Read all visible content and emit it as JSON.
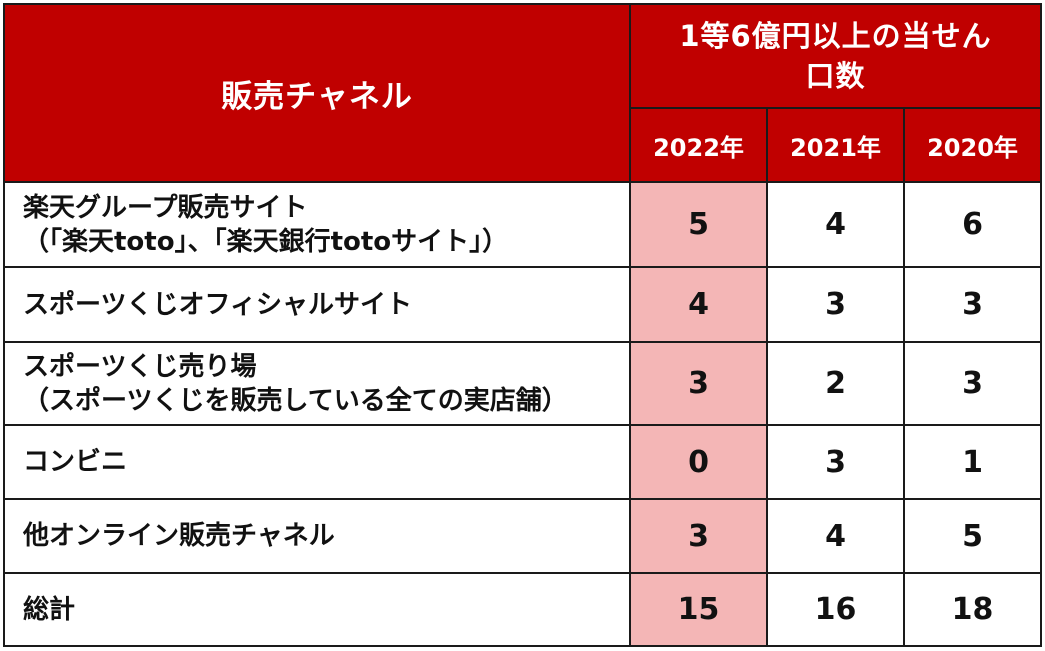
{
  "table": {
    "header": {
      "channel_label": "販売チャネル",
      "group_label_line1": "1等6億円以上の当せん",
      "group_label_line2": "口数",
      "years": [
        "2022年",
        "2021年",
        "2020年"
      ]
    },
    "rows": [
      {
        "label_line1": "楽天グループ販売サイト",
        "label_line2": "（「楽天toto」、「楽天銀行totoサイト」）",
        "values": [
          "5",
          "4",
          "6"
        ]
      },
      {
        "label_line1": "スポーツくじオフィシャルサイト",
        "label_line2": "",
        "values": [
          "4",
          "3",
          "3"
        ]
      },
      {
        "label_line1": "スポーツくじ売り場",
        "label_line2": "（スポーツくじを販売している全ての実店舗）",
        "values": [
          "3",
          "2",
          "3"
        ]
      },
      {
        "label_line1": "コンビニ",
        "label_line2": "",
        "values": [
          "0",
          "3",
          "1"
        ]
      },
      {
        "label_line1": "他オンライン販売チャネル",
        "label_line2": "",
        "values": [
          "3",
          "4",
          "5"
        ]
      },
      {
        "label_line1": "総計",
        "label_line2": "",
        "values": [
          "15",
          "16",
          "18"
        ]
      }
    ],
    "colors": {
      "header_background": "#c00000",
      "header_text": "#ffffff",
      "highlight_column": "#f4b6b6",
      "border": "#1a1a1a"
    }
  }
}
